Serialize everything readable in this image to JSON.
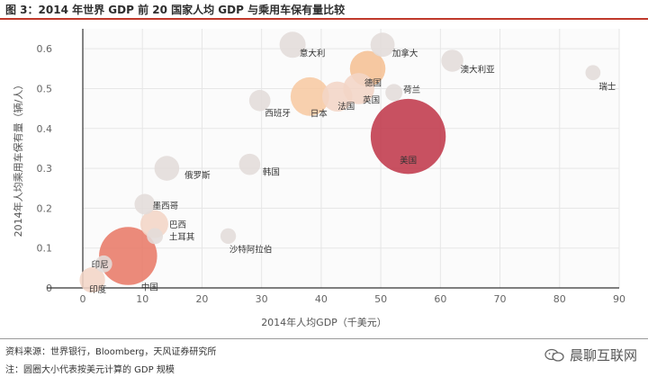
{
  "figure_title": "图 3：2014 年世界 GDP 前 20 国家人均 GDP 与乘用车保有量比较",
  "source": "资料来源：世界银行，Bloomberg，天风证券研究所",
  "note": "注：圆圈大小代表按美元计算的 GDP 规模",
  "watermark": "晨聊互联网",
  "colors": {
    "accent": "#c0392b",
    "usa": "#c0394b",
    "china": "#e87a68",
    "japan": "#f7c9a3",
    "germany": "#f5c094",
    "light": "#f2d5c6",
    "grey": "#e2dcda"
  },
  "chart_data": {
    "type": "scatter",
    "xlabel": "2014年人均GDP（千美元）",
    "ylabel": "2014年人均乘用车保有量（辆/人）",
    "xlim": [
      0,
      90
    ],
    "ylim": [
      0,
      0.65
    ],
    "xticks": [
      "0",
      "10",
      "20",
      "30",
      "40",
      "50",
      "60",
      "70",
      "80",
      "90"
    ],
    "yticks": [
      "0",
      "0.1",
      "0.2",
      "0.3",
      "0.4",
      "0.5",
      "0.6"
    ],
    "grid": true,
    "points": [
      {
        "label": "美国",
        "x": 54.6,
        "y": 0.38,
        "gdp": 17.4,
        "color": "usa"
      },
      {
        "label": "中国",
        "x": 7.6,
        "y": 0.08,
        "gdp": 10.4,
        "color": "china"
      },
      {
        "label": "日本",
        "x": 38.1,
        "y": 0.48,
        "gdp": 4.6,
        "color": "japan"
      },
      {
        "label": "德国",
        "x": 47.8,
        "y": 0.55,
        "gdp": 3.9,
        "color": "germany"
      },
      {
        "label": "英国",
        "x": 46.3,
        "y": 0.5,
        "gdp": 3.0,
        "color": "light"
      },
      {
        "label": "法国",
        "x": 42.7,
        "y": 0.48,
        "gdp": 2.8,
        "color": "light"
      },
      {
        "label": "巴西",
        "x": 12.0,
        "y": 0.16,
        "gdp": 2.4,
        "color": "light"
      },
      {
        "label": "意大利",
        "x": 35.2,
        "y": 0.61,
        "gdp": 2.1,
        "color": "grey"
      },
      {
        "label": "印度",
        "x": 1.6,
        "y": 0.02,
        "gdp": 2.0,
        "color": "light"
      },
      {
        "label": "俄罗斯",
        "x": 14.1,
        "y": 0.3,
        "gdp": 1.9,
        "color": "grey"
      },
      {
        "label": "加拿大",
        "x": 50.3,
        "y": 0.61,
        "gdp": 1.8,
        "color": "grey"
      },
      {
        "label": "澳大利亚",
        "x": 62.0,
        "y": 0.57,
        "gdp": 1.5,
        "color": "grey"
      },
      {
        "label": "韩国",
        "x": 28.0,
        "y": 0.31,
        "gdp": 1.4,
        "color": "grey"
      },
      {
        "label": "西班牙",
        "x": 29.7,
        "y": 0.47,
        "gdp": 1.4,
        "color": "grey"
      },
      {
        "label": "墨西哥",
        "x": 10.4,
        "y": 0.21,
        "gdp": 1.3,
        "color": "grey"
      },
      {
        "label": "印尼",
        "x": 3.5,
        "y": 0.06,
        "gdp": 0.9,
        "color": "grey"
      },
      {
        "label": "荷兰",
        "x": 52.2,
        "y": 0.49,
        "gdp": 0.9,
        "color": "grey"
      },
      {
        "label": "土耳其",
        "x": 12.1,
        "y": 0.13,
        "gdp": 0.8,
        "color": "grey"
      },
      {
        "label": "沙特阿拉伯",
        "x": 24.4,
        "y": 0.13,
        "gdp": 0.75,
        "color": "grey"
      },
      {
        "label": "瑞士",
        "x": 85.6,
        "y": 0.54,
        "gdp": 0.7,
        "color": "grey"
      }
    ]
  }
}
